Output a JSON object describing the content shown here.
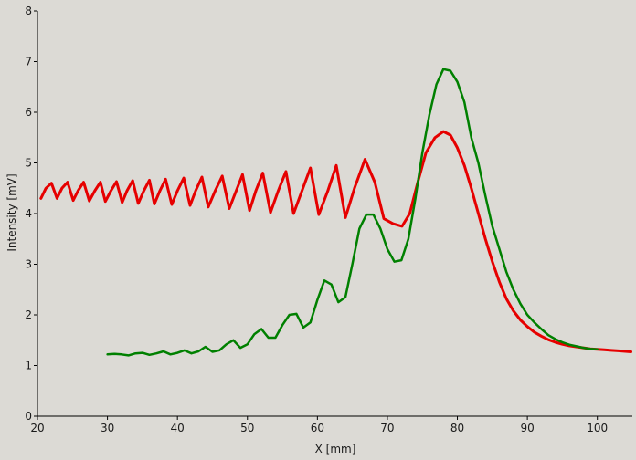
{
  "chart_data": {
    "type": "line",
    "title": "",
    "xlabel": "X [mm]",
    "ylabel": "Intensity [mV]",
    "xlim": [
      20,
      105
    ],
    "ylim": [
      0,
      8
    ],
    "x_ticks": [
      20,
      30,
      40,
      50,
      60,
      70,
      80,
      90,
      100
    ],
    "y_ticks": [
      0,
      1,
      2,
      3,
      4,
      5,
      6,
      7,
      8
    ],
    "grid": false,
    "legend": "none",
    "background": "#dcdad5",
    "series": [
      {
        "color": "#e60000",
        "x": [
          20.5,
          21.2,
          22.0,
          22.8,
          23.5,
          24.3,
          25.1,
          25.8,
          26.6,
          27.4,
          28.2,
          29.0,
          29.7,
          30.5,
          31.3,
          32.1,
          32.8,
          33.6,
          34.4,
          35.2,
          36.0,
          36.7,
          37.5,
          38.3,
          39.2,
          40.0,
          40.9,
          41.8,
          42.6,
          43.5,
          44.4,
          45.4,
          46.4,
          47.4,
          48.4,
          49.3,
          50.3,
          51.2,
          52.2,
          53.3,
          54.4,
          55.5,
          56.6,
          57.8,
          59.0,
          60.2,
          61.5,
          62.7,
          64.0,
          65.3,
          66.8,
          68.2,
          69.5,
          70.8,
          72.1,
          73.2,
          74.3,
          75.5,
          76.8,
          78.0,
          79.0,
          80.0,
          81.0,
          82.0,
          83.0,
          84.0,
          85.0,
          86.0,
          87.0,
          88.0,
          89.0,
          90.0,
          91.0,
          92.0,
          93.0,
          94.0,
          95.0,
          96.0,
          97.0,
          98.0,
          99.0,
          100.0,
          101.0,
          102.0,
          103.0,
          104.0,
          104.8
        ],
        "y": [
          4.3,
          4.5,
          4.6,
          4.3,
          4.5,
          4.62,
          4.26,
          4.45,
          4.62,
          4.25,
          4.45,
          4.62,
          4.24,
          4.45,
          4.63,
          4.22,
          4.45,
          4.65,
          4.2,
          4.45,
          4.66,
          4.19,
          4.45,
          4.68,
          4.18,
          4.45,
          4.7,
          4.16,
          4.45,
          4.72,
          4.13,
          4.45,
          4.74,
          4.1,
          4.45,
          4.77,
          4.06,
          4.45,
          4.8,
          4.02,
          4.45,
          4.83,
          4.0,
          4.45,
          4.9,
          3.98,
          4.45,
          4.95,
          3.92,
          4.5,
          5.07,
          4.62,
          3.9,
          3.8,
          3.75,
          4.0,
          4.6,
          5.2,
          5.5,
          5.62,
          5.55,
          5.3,
          4.95,
          4.5,
          4.0,
          3.5,
          3.05,
          2.65,
          2.32,
          2.08,
          1.9,
          1.77,
          1.66,
          1.58,
          1.51,
          1.46,
          1.42,
          1.39,
          1.37,
          1.35,
          1.33,
          1.32,
          1.31,
          1.3,
          1.29,
          1.28,
          1.27
        ]
      },
      {
        "color": "#008000",
        "x": [
          30.0,
          31.0,
          32.0,
          33.0,
          34.0,
          35.0,
          36.0,
          37.0,
          38.0,
          39.0,
          40.0,
          41.0,
          42.0,
          43.0,
          44.0,
          45.0,
          46.0,
          47.0,
          48.0,
          49.0,
          50.0,
          51.0,
          52.0,
          53.0,
          54.0,
          55.0,
          56.0,
          57.0,
          58.0,
          59.0,
          60.0,
          61.0,
          62.0,
          63.0,
          64.0,
          65.0,
          66.0,
          67.0,
          68.0,
          69.0,
          70.0,
          71.0,
          72.0,
          73.0,
          74.0,
          75.0,
          76.0,
          77.0,
          78.0,
          79.0,
          80.0,
          81.0,
          82.0,
          83.0,
          84.0,
          85.0,
          86.0,
          87.0,
          88.0,
          89.0,
          90.0,
          91.0,
          92.0,
          93.0,
          94.0,
          95.0,
          96.0,
          97.0,
          98.0,
          99.0,
          100.0
        ],
        "y": [
          1.22,
          1.23,
          1.22,
          1.2,
          1.24,
          1.25,
          1.21,
          1.24,
          1.28,
          1.22,
          1.25,
          1.3,
          1.24,
          1.28,
          1.37,
          1.27,
          1.3,
          1.42,
          1.5,
          1.35,
          1.42,
          1.62,
          1.72,
          1.55,
          1.55,
          1.8,
          2.0,
          2.02,
          1.75,
          1.85,
          2.3,
          2.68,
          2.6,
          2.25,
          2.35,
          3.0,
          3.7,
          3.98,
          3.98,
          3.7,
          3.3,
          3.05,
          3.08,
          3.5,
          4.3,
          5.2,
          5.95,
          6.55,
          6.85,
          6.82,
          6.6,
          6.2,
          5.5,
          5.0,
          4.35,
          3.75,
          3.3,
          2.85,
          2.5,
          2.22,
          2.0,
          1.85,
          1.72,
          1.6,
          1.52,
          1.46,
          1.41,
          1.38,
          1.35,
          1.33,
          1.32
        ]
      }
    ]
  }
}
